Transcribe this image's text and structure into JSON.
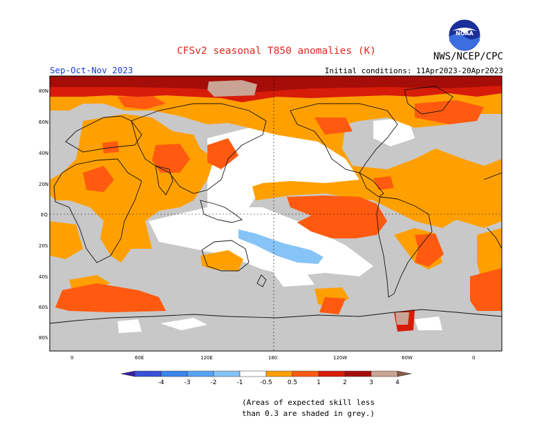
{
  "title": "CFSv2 seasonal T850 anomalies (K)",
  "agency": "NWS/NCEP/CPC",
  "logo_text": "NOAA",
  "season": "Sep-Oct-Nov 2023",
  "initial_conditions": "Initial conditions: 11Apr2023-20Apr2023",
  "lat_labels": [
    "80N",
    "60N",
    "40N",
    "20N",
    "EQ",
    "20S",
    "40S",
    "60S",
    "80S"
  ],
  "lon_labels": [
    "0",
    "60E",
    "120E",
    "180",
    "120W",
    "60W",
    "0"
  ],
  "colorbar": {
    "labels": [
      "-4",
      "-3",
      "-2",
      "-1",
      "-0.5",
      "0.5",
      "1",
      "2",
      "3",
      "4"
    ],
    "colors": [
      "#3a1fa0",
      "#3b4fd8",
      "#3a86ea",
      "#56a4f2",
      "#86c3f7",
      "#ffffff",
      "#ffa000",
      "#ff5a10",
      "#d81c0a",
      "#a50d08",
      "#c9a495",
      "#8a5a48"
    ]
  },
  "colors": {
    "grey_skill": "#c8c8c8",
    "anom_05_1": "#ffa000",
    "anom_1_2": "#ff5a10",
    "anom_2_3": "#d81c0a",
    "anom_3_4": "#a50d08",
    "anom_4_plus": "#c9a495",
    "anom_neg_05_1": "#86c3f7"
  },
  "note": [
    "(Areas of expected skill less",
    "than 0.3 are shaded in grey.)"
  ]
}
